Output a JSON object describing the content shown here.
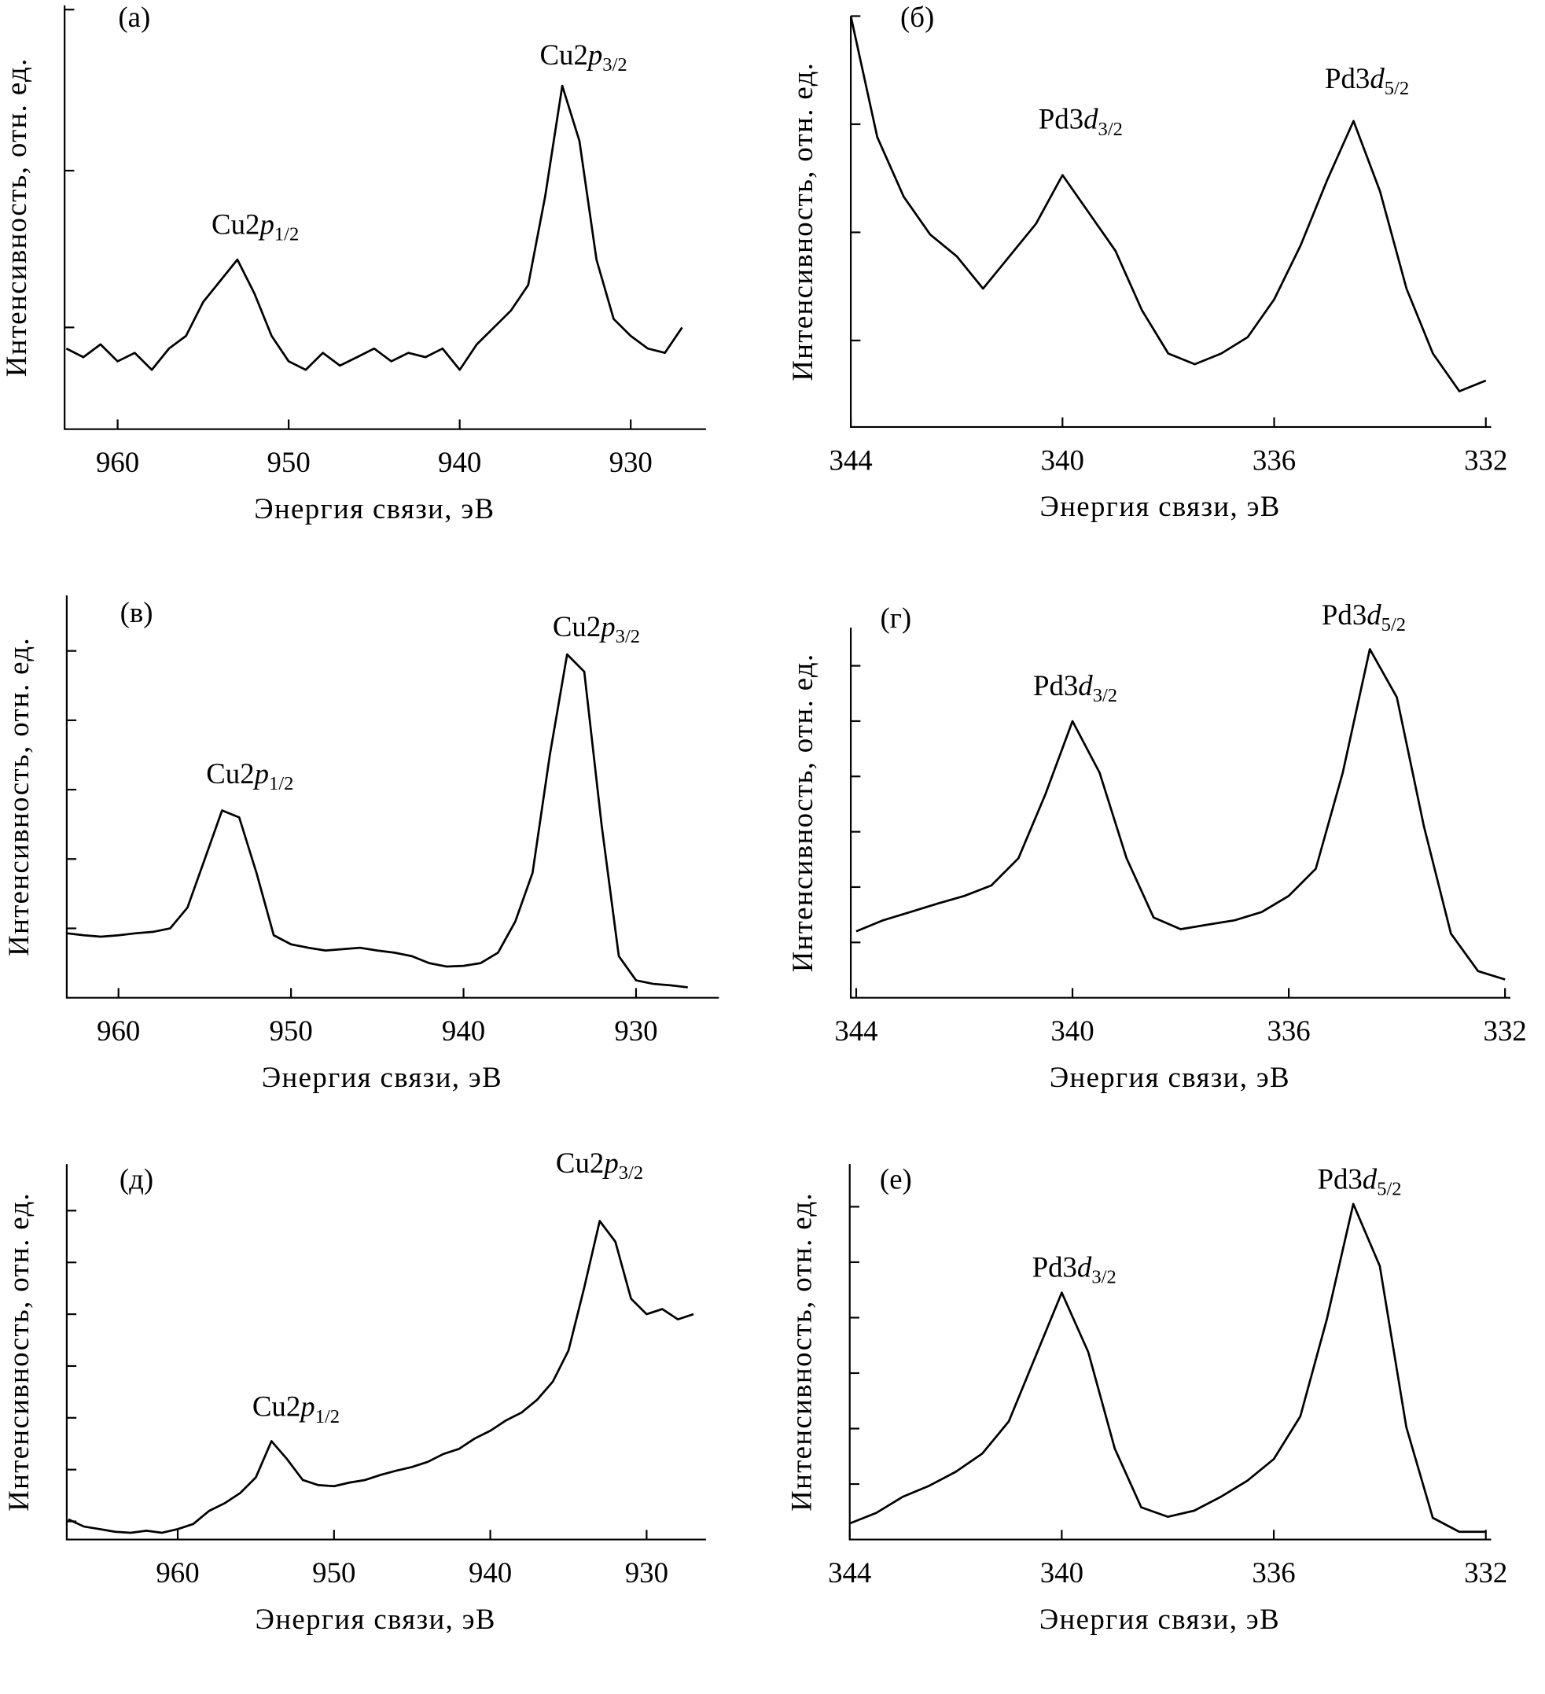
{
  "chart_data": [
    {
      "type": "line",
      "panel": "(а)",
      "xlabel": "Энергия связи, эВ",
      "ylabel": "Интенсивность, отн. ед.",
      "xlim": [
        963.1,
        925.6
      ],
      "xticks": [
        960,
        950,
        940,
        930
      ],
      "ylim": [
        0,
        100
      ],
      "yticks": [
        24,
        61,
        99
      ],
      "color": "#000000",
      "x": [
        963,
        962,
        961,
        960,
        959,
        958,
        957,
        956,
        955,
        954,
        953,
        952,
        951,
        950,
        949,
        948,
        947,
        946,
        945,
        944,
        943,
        942,
        941,
        940,
        939,
        938,
        937,
        936,
        935,
        934,
        933,
        932,
        931,
        930,
        929,
        928,
        927
      ],
      "values": [
        19,
        17,
        20,
        16,
        18,
        14,
        19,
        22,
        30,
        35,
        40,
        32,
        22,
        16,
        14,
        18,
        15,
        17,
        19,
        16,
        18,
        17,
        19,
        14,
        20,
        24,
        28,
        34,
        55,
        81,
        68,
        40,
        26,
        22,
        19,
        18,
        24
      ],
      "annotations": [
        {
          "text": "Cu2",
          "orbital": "p",
          "sub": "1/2"
        },
        {
          "text": "Cu2",
          "orbital": "p",
          "sub": "3/2"
        }
      ]
    },
    {
      "type": "line",
      "panel": "(б)",
      "xlabel": "Энергия связи, эВ",
      "ylabel": "Интенсивность, отн. ед.",
      "xlim": [
        344,
        331.9
      ],
      "xticks": [
        344,
        340,
        336,
        332
      ],
      "ylim": [
        0,
        3.8
      ],
      "yticks": [
        0.8,
        1.8,
        2.8,
        3.8
      ],
      "color": "#000000",
      "x": [
        344,
        343.5,
        343,
        342.5,
        342,
        341.5,
        341,
        340.5,
        340,
        339.5,
        339,
        338.5,
        338,
        337.5,
        337,
        336.5,
        336,
        335.5,
        335,
        334.5,
        334,
        333.5,
        333,
        332.5,
        332
      ],
      "values": [
        3.8,
        2.68,
        2.13,
        1.78,
        1.58,
        1.28,
        1.58,
        1.88,
        2.33,
        1.98,
        1.63,
        1.08,
        0.68,
        0.58,
        0.68,
        0.83,
        1.18,
        1.68,
        2.28,
        2.83,
        2.18,
        1.28,
        0.68,
        0.33,
        0.43
      ],
      "annotations": [
        {
          "text": "Pd3",
          "orbital": "d",
          "sub": "3/2"
        },
        {
          "text": "Pd3",
          "orbital": "d",
          "sub": "5/2"
        }
      ]
    },
    {
      "type": "line",
      "panel": "(в)",
      "xlabel": "Энергия связи, эВ",
      "ylabel": "Интенсивность, отн. ед.",
      "xlim": [
        963,
        925.2
      ],
      "xticks": [
        960,
        950,
        940,
        930
      ],
      "ylim": [
        0,
        5.8
      ],
      "yticks": [
        1,
        2,
        3,
        4,
        5
      ],
      "color": "#000000",
      "x": [
        963,
        962,
        961,
        960,
        959,
        958,
        957,
        956,
        955,
        954,
        953,
        952,
        951,
        950,
        949,
        948,
        947,
        946,
        945,
        944,
        943,
        942,
        941,
        940,
        939,
        938,
        937,
        936,
        935,
        934,
        933,
        932,
        931,
        930,
        929,
        928,
        927
      ],
      "values": [
        0.93,
        0.9,
        0.88,
        0.9,
        0.93,
        0.95,
        1.0,
        1.3,
        2.0,
        2.7,
        2.6,
        1.8,
        0.9,
        0.77,
        0.72,
        0.68,
        0.7,
        0.72,
        0.68,
        0.65,
        0.6,
        0.5,
        0.45,
        0.46,
        0.5,
        0.65,
        1.1,
        1.8,
        3.5,
        4.95,
        4.7,
        2.5,
        0.6,
        0.25,
        0.2,
        0.18,
        0.15
      ],
      "annotations": [
        {
          "text": "Cu2",
          "orbital": "p",
          "sub": "1/2"
        },
        {
          "text": "Cu2",
          "orbital": "p",
          "sub": "3/2"
        }
      ]
    },
    {
      "type": "line",
      "panel": "(г)",
      "xlabel": "Энергия связи, эВ",
      "ylabel": "Интенсивность, отн. ед.",
      "xlim": [
        344.1,
        331.9
      ],
      "xticks": [
        344,
        340,
        336,
        332
      ],
      "ylim": [
        0,
        6.69
      ],
      "yticks": [
        1,
        2,
        3,
        4,
        5,
        6
      ],
      "color": "#000000",
      "x": [
        344,
        343.5,
        343,
        342.5,
        342,
        341.5,
        341,
        340.5,
        340,
        339.5,
        339,
        338.5,
        338,
        337.5,
        337,
        336.5,
        336,
        335.5,
        335,
        334.5,
        334,
        333.5,
        333,
        332.5,
        332
      ],
      "values": [
        1.2,
        1.4,
        1.55,
        1.7,
        1.84,
        2.03,
        2.52,
        3.68,
        5.0,
        4.07,
        2.52,
        1.45,
        1.24,
        1.32,
        1.4,
        1.55,
        1.84,
        2.33,
        4.07,
        6.3,
        5.43,
        3.1,
        1.16,
        0.48,
        0.33
      ],
      "annotations": [
        {
          "text": "Pd3",
          "orbital": "d",
          "sub": "3/2"
        },
        {
          "text": "Pd3",
          "orbital": "d",
          "sub": "5/2"
        }
      ]
    },
    {
      "type": "line",
      "panel": "(д)",
      "xlabel": "Энергия связи, эВ",
      "ylabel": "Интенсивность, отн. ед.",
      "xlim": [
        967.1,
        926.2
      ],
      "xticks": [
        960,
        950,
        940,
        930
      ],
      "ylim": [
        0.65,
        7.9
      ],
      "yticks": [
        1,
        2,
        3,
        4,
        5,
        6,
        7
      ],
      "color": "#000000",
      "x": [
        967,
        966,
        965,
        964,
        963,
        962,
        961,
        960,
        959,
        958,
        957,
        956,
        955,
        954,
        953,
        952,
        951,
        950,
        949,
        948,
        947,
        946,
        945,
        944,
        943,
        942,
        941,
        940,
        939,
        938,
        937,
        936,
        935,
        934,
        933,
        932,
        931,
        930,
        929,
        928,
        927
      ],
      "values": [
        1.04,
        0.9,
        0.85,
        0.8,
        0.78,
        0.82,
        0.78,
        0.85,
        0.95,
        1.2,
        1.35,
        1.55,
        1.85,
        2.55,
        2.2,
        1.8,
        1.7,
        1.68,
        1.75,
        1.8,
        1.9,
        1.98,
        2.05,
        2.15,
        2.3,
        2.4,
        2.6,
        2.75,
        2.95,
        3.1,
        3.35,
        3.7,
        4.3,
        5.5,
        6.8,
        6.4,
        5.3,
        5.0,
        5.1,
        4.9,
        5.0
      ],
      "annotations": [
        {
          "text": "Cu2",
          "orbital": "p",
          "sub": "1/2"
        },
        {
          "text": "Cu2",
          "orbital": "p",
          "sub": "3/2"
        }
      ]
    },
    {
      "type": "line",
      "panel": "(е)",
      "xlabel": "Энергия связи, эВ",
      "ylabel": "Интенсивность, отн. ед.",
      "xlim": [
        344,
        331.9
      ],
      "xticks": [
        344,
        340,
        336,
        332
      ],
      "ylim": [
        0,
        6.77
      ],
      "yticks": [
        1,
        2,
        3,
        4,
        5,
        6
      ],
      "color": "#000000",
      "x": [
        344,
        343.5,
        343,
        342.5,
        342,
        341.5,
        341,
        340.5,
        340,
        339.5,
        339,
        338.5,
        338,
        337.5,
        337,
        336.5,
        336,
        335.5,
        335,
        334.5,
        334,
        333.5,
        333,
        332.5,
        332
      ],
      "values": [
        0.29,
        0.48,
        0.77,
        0.97,
        1.22,
        1.55,
        2.13,
        3.29,
        4.45,
        3.38,
        1.64,
        0.58,
        0.41,
        0.52,
        0.77,
        1.06,
        1.45,
        2.22,
        3.97,
        6.05,
        4.93,
        2.03,
        0.39,
        0.14,
        0.14
      ],
      "annotations": [
        {
          "text": "Pd3",
          "orbital": "d",
          "sub": "3/2"
        },
        {
          "text": "Pd3",
          "orbital": "d",
          "sub": "5/2"
        }
      ]
    }
  ]
}
